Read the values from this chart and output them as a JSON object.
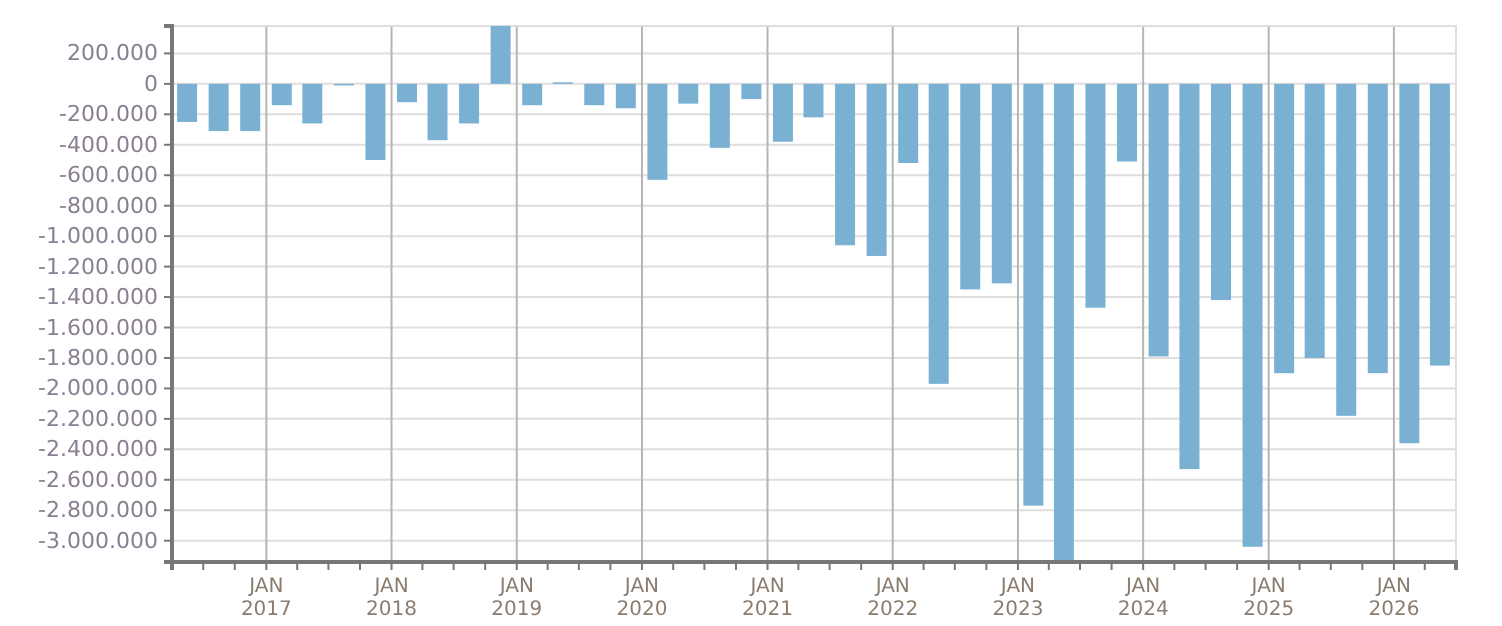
{
  "chart_data": {
    "type": "bar",
    "color": "#7ab1d3",
    "grid": true,
    "x": [
      "2016-05-15",
      "2016-08-15",
      "2016-11-15",
      "2017-02-15",
      "2017-05-15",
      "2017-08-15",
      "2017-11-15",
      "2018-02-15",
      "2018-05-15",
      "2018-08-15",
      "2018-11-15",
      "2019-02-15",
      "2019-05-15",
      "2019-08-15",
      "2019-11-15",
      "2020-02-15",
      "2020-05-15",
      "2020-08-15",
      "2020-11-15",
      "2021-02-15",
      "2021-05-15",
      "2021-08-15",
      "2021-11-15",
      "2022-02-15",
      "2022-05-15",
      "2022-08-15",
      "2022-11-15",
      "2023-02-15",
      "2023-05-15",
      "2023-08-15",
      "2023-11-15",
      "2024-02-15",
      "2024-05-15",
      "2024-08-15",
      "2024-11-15",
      "2025-02-15",
      "2025-05-15",
      "2025-08-15",
      "2025-11-15",
      "2026-02-15",
      "2026-05-15"
    ],
    "values": [
      -250000,
      -310000,
      -310000,
      -140000,
      -260000,
      -10000,
      -500000,
      -120000,
      -370000,
      -260000,
      380000,
      -140000,
      10000,
      -140000,
      -160000,
      -630000,
      -130000,
      -420000,
      -100000,
      -380000,
      -220000,
      -1060000,
      -1130000,
      -520000,
      -1970000,
      -1350000,
      -1310000,
      -2770000,
      -3140000,
      -1470000,
      -510000,
      -1790000,
      -2530000,
      -1420000,
      -3040000,
      -1900000,
      -1800000,
      -2180000,
      -1900000,
      -2360000,
      -1850000
    ],
    "xlim": [
      "2016-04-01",
      "2026-07-01"
    ],
    "xticks": [
      {
        "value": "2016-07-01",
        "label": null
      },
      {
        "value": "2016-10-01",
        "label": null
      },
      {
        "value": "2017-01-01",
        "label": "JAN 2017"
      },
      {
        "value": "2017-04-01",
        "label": null
      },
      {
        "value": "2017-07-01",
        "label": null
      },
      {
        "value": "2017-10-01",
        "label": null
      },
      {
        "value": "2018-01-01",
        "label": "JAN 2018"
      },
      {
        "value": "2018-04-01",
        "label": null
      },
      {
        "value": "2018-07-01",
        "label": null
      },
      {
        "value": "2018-10-01",
        "label": null
      },
      {
        "value": "2019-01-01",
        "label": "JAN 2019"
      },
      {
        "value": "2019-04-01",
        "label": null
      },
      {
        "value": "2019-07-01",
        "label": null
      },
      {
        "value": "2019-10-01",
        "label": null
      },
      {
        "value": "2020-01-01",
        "label": "JAN 2020"
      },
      {
        "value": "2020-04-01",
        "label": null
      },
      {
        "value": "2020-07-01",
        "label": null
      },
      {
        "value": "2020-10-01",
        "label": null
      },
      {
        "value": "2021-01-01",
        "label": "JAN 2021"
      },
      {
        "value": "2021-04-01",
        "label": null
      },
      {
        "value": "2021-07-01",
        "label": null
      },
      {
        "value": "2021-10-01",
        "label": null
      },
      {
        "value": "2022-01-01",
        "label": "JAN 2022"
      },
      {
        "value": "2022-04-01",
        "label": null
      },
      {
        "value": "2022-07-01",
        "label": null
      },
      {
        "value": "2022-10-01",
        "label": null
      },
      {
        "value": "2023-01-01",
        "label": "JAN 2023"
      },
      {
        "value": "2023-04-01",
        "label": null
      },
      {
        "value": "2023-07-01",
        "label": null
      },
      {
        "value": "2023-10-01",
        "label": null
      },
      {
        "value": "2024-01-01",
        "label": "JAN 2024"
      },
      {
        "value": "2024-04-01",
        "label": null
      },
      {
        "value": "2024-07-01",
        "label": null
      },
      {
        "value": "2024-10-01",
        "label": null
      },
      {
        "value": "2025-01-01",
        "label": "JAN 2025"
      },
      {
        "value": "2025-04-01",
        "label": null
      },
      {
        "value": "2025-07-01",
        "label": null
      },
      {
        "value": "2025-10-01",
        "label": null
      },
      {
        "value": "2026-01-01",
        "label": "JAN 2026"
      },
      {
        "value": "2026-04-01",
        "label": null
      }
    ],
    "ylim": [
      -3140000,
      380000
    ],
    "yticks": [
      {
        "value": 200000,
        "label": "200.000"
      },
      0,
      {
        "value": -200000,
        "label": "-200.000"
      },
      {
        "value": -400000,
        "label": "-400.000"
      },
      {
        "value": -600000,
        "label": "-600.000"
      },
      {
        "value": -800000,
        "label": "-800.000"
      },
      {
        "value": -1000000,
        "label": "-1.000.000"
      },
      {
        "value": -1200000,
        "label": "-1.200.000"
      },
      {
        "value": -1400000,
        "label": "-1.400.000"
      },
      {
        "value": -1600000,
        "label": "-1.600.000"
      },
      {
        "value": -1800000,
        "label": "-1.800.000"
      },
      {
        "value": -2000000,
        "label": "-2.000.000"
      },
      {
        "value": -2200000,
        "label": "-2.200.000"
      },
      {
        "value": -2400000,
        "label": "-2.400.000"
      },
      {
        "value": -2600000,
        "label": "-2.600.000"
      },
      {
        "value": -2800000,
        "label": "-2.800.000"
      },
      {
        "value": -3000000,
        "label": "-3.000.000"
      }
    ]
  }
}
